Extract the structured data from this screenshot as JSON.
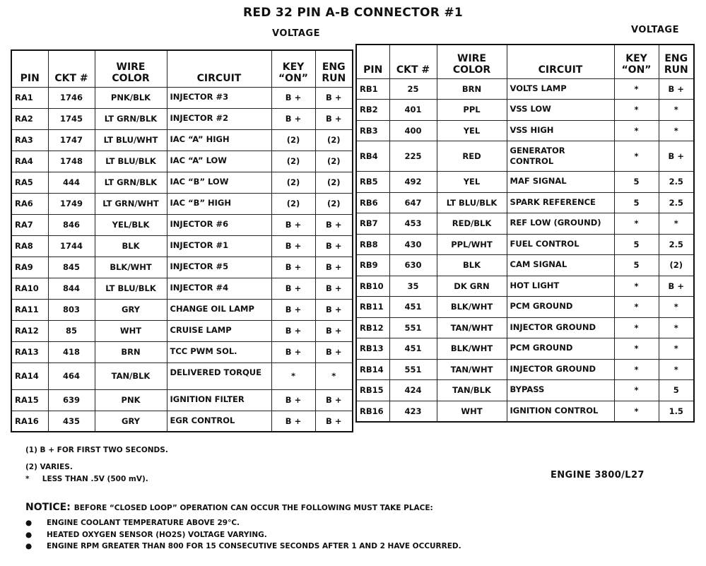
{
  "title": "RED 32 PIN A-B CONNECTOR #1",
  "voltage_label": "VOLTAGE",
  "headers": {
    "pin": "PIN",
    "ckt": "CKT #",
    "wire1": "WIRE",
    "wire2": "COLOR",
    "circuit": "CIRCUIT",
    "key1": "KEY",
    "key2": "“ON”",
    "eng1": "ENG",
    "eng2": "RUN"
  },
  "table_a": [
    [
      "RA1",
      "1746",
      "PNK/BLK",
      "INJECTOR #3",
      "B +",
      "B +"
    ],
    [
      "RA2",
      "1745",
      "LT GRN/BLK",
      "INJECTOR #2",
      "B +",
      "B +"
    ],
    [
      "RA3",
      "1747",
      "LT BLU/WHT",
      "IAC “A” HIGH",
      "(2)",
      "(2)"
    ],
    [
      "RA4",
      "1748",
      "LT BLU/BLK",
      "IAC “A” LOW",
      "(2)",
      "(2)"
    ],
    [
      "RA5",
      "444",
      "LT GRN/BLK",
      "IAC “B” LOW",
      "(2)",
      "(2)"
    ],
    [
      "RA6",
      "1749",
      "LT GRN/WHT",
      "IAC “B” HIGH",
      "(2)",
      "(2)"
    ],
    [
      "RA7",
      "846",
      "YEL/BLK",
      "INJECTOR #6",
      "B +",
      "B +"
    ],
    [
      "RA8",
      "1744",
      "BLK",
      "INJECTOR #1",
      "B +",
      "B +"
    ],
    [
      "RA9",
      "845",
      "BLK/WHT",
      "INJECTOR #5",
      "B +",
      "B +"
    ],
    [
      "RA10",
      "844",
      "LT BLU/BLK",
      "INJECTOR #4",
      "B +",
      "B +"
    ],
    [
      "RA11",
      "803",
      "GRY",
      "CHANGE OIL LAMP",
      "B +",
      "B +"
    ],
    [
      "RA12",
      "85",
      "WHT",
      "CRUISE LAMP",
      "B +",
      "B +"
    ],
    [
      "RA13",
      "418",
      "BRN",
      "TCC PWM SOL.",
      "B +",
      "B +"
    ],
    [
      "RA14",
      "464",
      "TAN/BLK",
      "DELIVERED TORQUE",
      "*",
      "*"
    ],
    [
      "RA15",
      "639",
      "PNK",
      "IGNITION FILTER",
      "B +",
      "B +"
    ],
    [
      "RA16",
      "435",
      "GRY",
      "EGR CONTROL",
      "B +",
      "B +"
    ]
  ],
  "table_b": [
    [
      "RB1",
      "25",
      "BRN",
      "VOLTS LAMP",
      "*",
      "B +"
    ],
    [
      "RB2",
      "401",
      "PPL",
      "VSS LOW",
      "*",
      "*"
    ],
    [
      "RB3",
      "400",
      "YEL",
      "VSS HIGH",
      "*",
      "*"
    ],
    [
      "RB4",
      "225",
      "RED",
      "GENERATOR CONTROL",
      "*",
      "B +"
    ],
    [
      "RB5",
      "492",
      "YEL",
      "MAF SIGNAL",
      "5",
      "2.5"
    ],
    [
      "RB6",
      "647",
      "LT BLU/BLK",
      "SPARK REFERENCE",
      "5",
      "2.5"
    ],
    [
      "RB7",
      "453",
      "RED/BLK",
      "REF LOW (GROUND)",
      "*",
      "*"
    ],
    [
      "RB8",
      "430",
      "PPL/WHT",
      "FUEL CONTROL",
      "5",
      "2.5"
    ],
    [
      "RB9",
      "630",
      "BLK",
      "CAM SIGNAL",
      "5",
      "(2)"
    ],
    [
      "RB10",
      "35",
      "DK GRN",
      "HOT LIGHT",
      "*",
      "B +"
    ],
    [
      "RB11",
      "451",
      "BLK/WHT",
      "PCM GROUND",
      "*",
      "*"
    ],
    [
      "RB12",
      "551",
      "TAN/WHT",
      "INJECTOR GROUND",
      "*",
      "*"
    ],
    [
      "RB13",
      "451",
      "BLK/WHT",
      "PCM GROUND",
      "*",
      "*"
    ],
    [
      "RB14",
      "551",
      "TAN/WHT",
      "INJECTOR GROUND",
      "*",
      "*"
    ],
    [
      "RB15",
      "424",
      "TAN/BLK",
      "BYPASS",
      "*",
      "5"
    ],
    [
      "RB16",
      "423",
      "WHT",
      "IGNITION CONTROL",
      "*",
      "1.5"
    ]
  ],
  "notes": [
    "(1)  B + FOR FIRST TWO SECONDS.",
    "(2)  VARIES.",
    "*     LESS THAN .5V (500 mV)."
  ],
  "engine": "ENGINE  3800/L27",
  "notice": {
    "label": "NOTICE:",
    "text": "BEFORE “CLOSED LOOP” OPERATION CAN OCCUR THE FOLLOWING MUST TAKE PLACE:",
    "bullets": [
      "ENGINE COOLANT TEMPERATURE ABOVE 29°C.",
      "HEATED OXYGEN SENSOR (HO2S) VOLTAGE VARYING.",
      "ENGINE RPM GREATER THAN 800 FOR 15 CONSECUTIVE SECONDS AFTER 1 AND 2 HAVE OCCURRED."
    ]
  }
}
